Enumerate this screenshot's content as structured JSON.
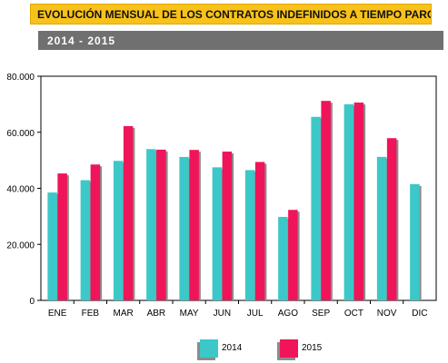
{
  "header": {
    "title": "EVOLUCIÓN MENSUAL DE LOS CONTRATOS INDEFINIDOS A TIEMPO PARCIAL",
    "subtitle": "2014 - 2015"
  },
  "chart_data": {
    "type": "bar",
    "categories": [
      "ENE",
      "FEB",
      "MAR",
      "ABR",
      "MAY",
      "JUN",
      "JUL",
      "AGO",
      "SEP",
      "OCT",
      "NOV",
      "DIC"
    ],
    "series": [
      {
        "name": "2014",
        "color": "#3cc8c8",
        "values": [
          38500,
          42900,
          49800,
          54000,
          51200,
          47500,
          46500,
          29800,
          65500,
          70000,
          51200,
          41500
        ]
      },
      {
        "name": "2015",
        "color": "#f0145a",
        "values": [
          45300,
          48500,
          62200,
          53800,
          53700,
          53100,
          49400,
          32300,
          71200,
          70600,
          57900,
          null
        ]
      }
    ],
    "ylim": [
      0,
      80000
    ],
    "yticks": [
      0,
      20000,
      40000,
      60000,
      80000
    ],
    "ytick_labels": [
      "0",
      "20.000",
      "40.000",
      "60.000",
      "80.000"
    ],
    "xlabel": "",
    "ylabel": "",
    "grid": false,
    "legend_position": "bottom-center"
  }
}
